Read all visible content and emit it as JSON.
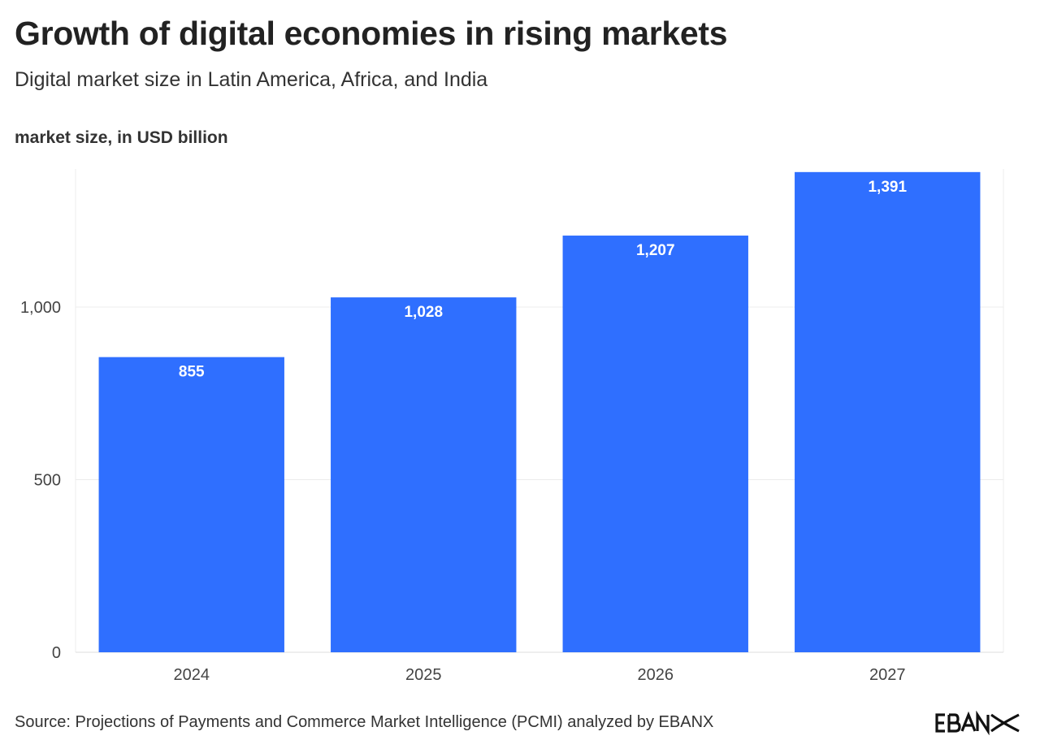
{
  "chart_data": {
    "type": "bar",
    "title": "Growth of digital economies in rising markets",
    "subtitle": "Digital market size in Latin America, Africa, and India",
    "ylabel": "market size, in USD billion",
    "xlabel": "",
    "categories": [
      "2024",
      "2025",
      "2026",
      "2027"
    ],
    "values": [
      855,
      1028,
      1207,
      1391
    ],
    "data_labels": [
      "855",
      "1,028",
      "1,207",
      "1,391"
    ],
    "ylim": [
      0,
      1400
    ],
    "yticks": [
      0,
      500,
      1000
    ],
    "ytick_labels": [
      "0",
      "500",
      "1,000"
    ],
    "grid": true,
    "bar_color": "#2F6FFF",
    "label_color": "#FFFFFF"
  },
  "source": "Source: Projections of Payments and Commerce Market Intelligence (PCMI) analyzed by EBANX",
  "logo": "EBANX"
}
